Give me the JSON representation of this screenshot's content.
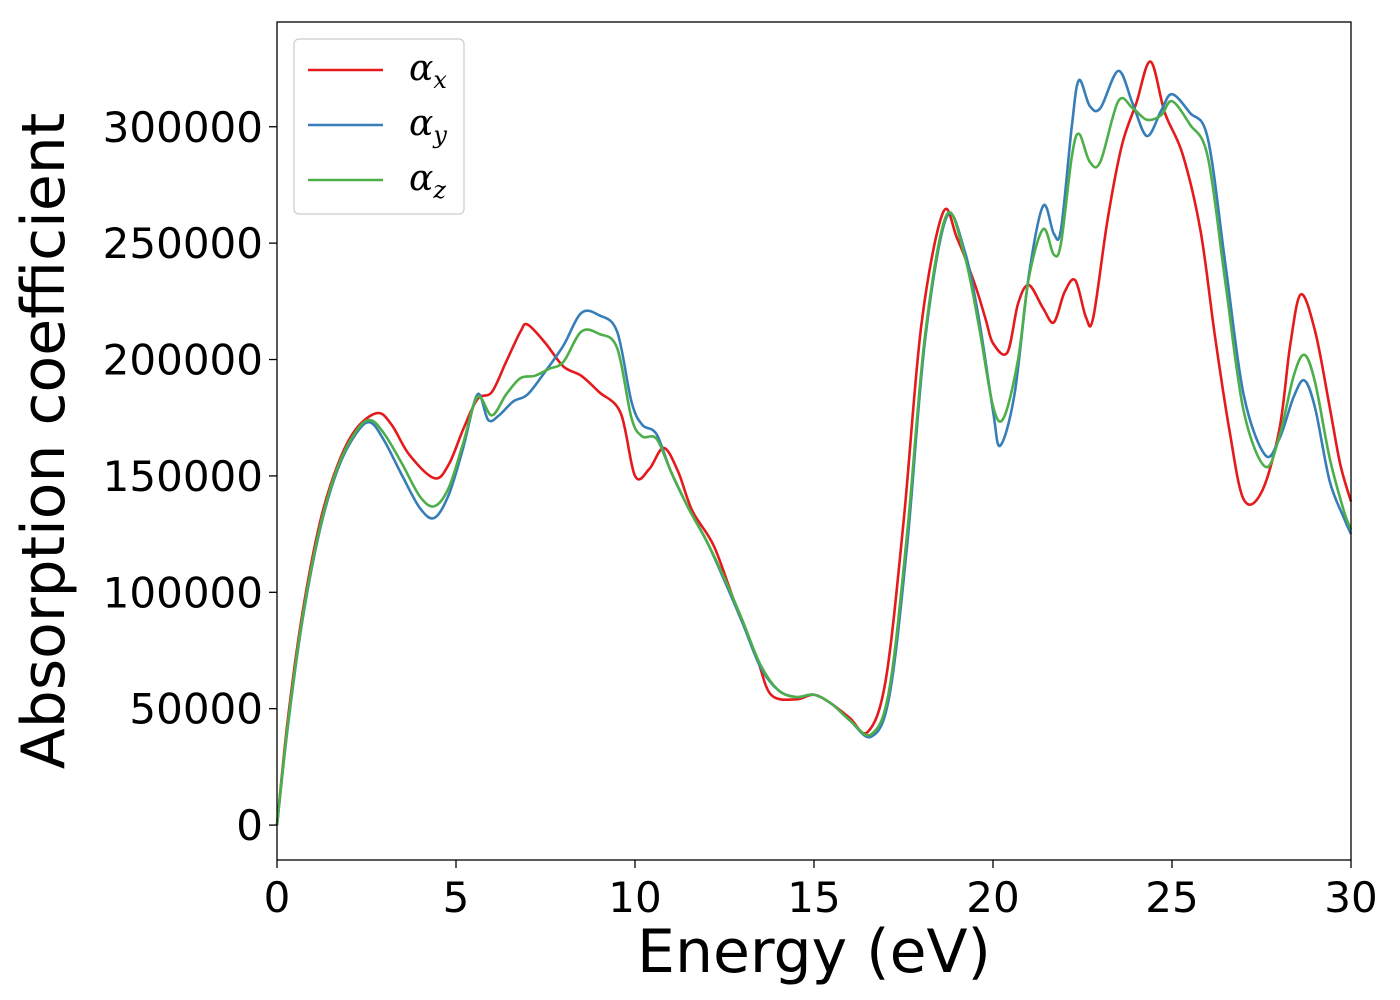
{
  "chart_data": {
    "type": "line",
    "title": "",
    "xlabel": "Energy (eV)",
    "ylabel": "Absorption coefficient",
    "xlim": [
      0,
      30
    ],
    "ylim": [
      -15000,
      345000
    ],
    "xticks": [
      0,
      5,
      10,
      15,
      20,
      25,
      30
    ],
    "xtick_labels": [
      "0",
      "5",
      "10",
      "15",
      "20",
      "25",
      "30"
    ],
    "yticks": [
      0,
      50000,
      100000,
      150000,
      200000,
      250000,
      300000
    ],
    "ytick_labels": [
      "0",
      "50000",
      "100000",
      "150000",
      "200000",
      "250000",
      "300000"
    ],
    "grid": false,
    "legend_position": "top-left",
    "series": [
      {
        "name": "α_x",
        "legend_symbol": "α",
        "legend_subscript": "x",
        "color": "#e41a1c",
        "points": [
          [
            0,
            0
          ],
          [
            0.3,
            45000
          ],
          [
            0.7,
            90000
          ],
          [
            1.2,
            130000
          ],
          [
            1.7,
            155000
          ],
          [
            2.2,
            170000
          ],
          [
            2.8,
            177000
          ],
          [
            3.2,
            172000
          ],
          [
            3.7,
            159000
          ],
          [
            4.4,
            149000
          ],
          [
            4.8,
            155000
          ],
          [
            5.2,
            170000
          ],
          [
            5.6,
            183000
          ],
          [
            6.0,
            186000
          ],
          [
            6.4,
            199000
          ],
          [
            6.8,
            212000
          ],
          [
            7.0,
            215000
          ],
          [
            7.5,
            207000
          ],
          [
            8.0,
            197000
          ],
          [
            8.5,
            193000
          ],
          [
            9.0,
            186000
          ],
          [
            9.6,
            177000
          ],
          [
            10.0,
            150000
          ],
          [
            10.4,
            153000
          ],
          [
            10.8,
            162000
          ],
          [
            11.2,
            152000
          ],
          [
            11.6,
            135000
          ],
          [
            12.2,
            120000
          ],
          [
            12.8,
            95000
          ],
          [
            13.4,
            72000
          ],
          [
            13.8,
            56000
          ],
          [
            14.5,
            54000
          ],
          [
            15.0,
            56000
          ],
          [
            15.5,
            52000
          ],
          [
            16.0,
            46000
          ],
          [
            16.5,
            40000
          ],
          [
            17.0,
            62000
          ],
          [
            17.5,
            130000
          ],
          [
            18.0,
            215000
          ],
          [
            18.6,
            263000
          ],
          [
            19.0,
            252000
          ],
          [
            19.5,
            232000
          ],
          [
            19.8,
            217000
          ],
          [
            20.0,
            207000
          ],
          [
            20.4,
            203000
          ],
          [
            20.7,
            224000
          ],
          [
            21.0,
            232000
          ],
          [
            21.4,
            222000
          ],
          [
            21.7,
            216000
          ],
          [
            22.0,
            229000
          ],
          [
            22.3,
            234000
          ],
          [
            22.6,
            218000
          ],
          [
            22.8,
            218000
          ],
          [
            23.2,
            260000
          ],
          [
            23.6,
            292000
          ],
          [
            24.0,
            310000
          ],
          [
            24.4,
            328000
          ],
          [
            24.8,
            306000
          ],
          [
            25.3,
            288000
          ],
          [
            25.8,
            255000
          ],
          [
            26.2,
            210000
          ],
          [
            26.6,
            170000
          ],
          [
            27.0,
            140000
          ],
          [
            27.5,
            143000
          ],
          [
            28.0,
            170000
          ],
          [
            28.3,
            206000
          ],
          [
            28.6,
            228000
          ],
          [
            29.0,
            212000
          ],
          [
            29.4,
            180000
          ],
          [
            29.7,
            155000
          ],
          [
            30.0,
            139000
          ]
        ]
      },
      {
        "name": "α_y",
        "legend_symbol": "α",
        "legend_subscript": "y",
        "color": "#377eb8",
        "points": [
          [
            0,
            0
          ],
          [
            0.3,
            42000
          ],
          [
            0.7,
            87000
          ],
          [
            1.2,
            127000
          ],
          [
            1.7,
            153000
          ],
          [
            2.2,
            168000
          ],
          [
            2.6,
            173000
          ],
          [
            3.0,
            165000
          ],
          [
            3.5,
            150000
          ],
          [
            4.0,
            136000
          ],
          [
            4.4,
            132000
          ],
          [
            4.8,
            142000
          ],
          [
            5.2,
            162000
          ],
          [
            5.6,
            185000
          ],
          [
            5.9,
            174000
          ],
          [
            6.2,
            176000
          ],
          [
            6.6,
            182000
          ],
          [
            7.0,
            185000
          ],
          [
            7.5,
            195000
          ],
          [
            8.0,
            206000
          ],
          [
            8.5,
            220000
          ],
          [
            9.0,
            219000
          ],
          [
            9.5,
            212000
          ],
          [
            9.9,
            182000
          ],
          [
            10.2,
            172000
          ],
          [
            10.6,
            168000
          ],
          [
            11.0,
            152000
          ],
          [
            11.5,
            136000
          ],
          [
            12.0,
            122000
          ],
          [
            12.5,
            105000
          ],
          [
            13.0,
            87000
          ],
          [
            13.5,
            68000
          ],
          [
            14.0,
            58000
          ],
          [
            14.5,
            55000
          ],
          [
            15.0,
            56000
          ],
          [
            15.5,
            52000
          ],
          [
            16.0,
            45000
          ],
          [
            16.6,
            38000
          ],
          [
            17.1,
            55000
          ],
          [
            17.6,
            120000
          ],
          [
            18.1,
            208000
          ],
          [
            18.7,
            261000
          ],
          [
            19.2,
            247000
          ],
          [
            19.6,
            218000
          ],
          [
            20.0,
            178000
          ],
          [
            20.2,
            163000
          ],
          [
            20.6,
            185000
          ],
          [
            21.0,
            236000
          ],
          [
            21.4,
            266000
          ],
          [
            21.7,
            254000
          ],
          [
            21.9,
            256000
          ],
          [
            22.2,
            300000
          ],
          [
            22.4,
            320000
          ],
          [
            22.7,
            309000
          ],
          [
            23.0,
            308000
          ],
          [
            23.5,
            324000
          ],
          [
            23.9,
            310000
          ],
          [
            24.3,
            296000
          ],
          [
            24.7,
            307000
          ],
          [
            25.0,
            314000
          ],
          [
            25.5,
            306000
          ],
          [
            26.0,
            295000
          ],
          [
            26.5,
            240000
          ],
          [
            27.0,
            185000
          ],
          [
            27.6,
            159000
          ],
          [
            28.0,
            166000
          ],
          [
            28.4,
            184000
          ],
          [
            28.7,
            191000
          ],
          [
            29.0,
            179000
          ],
          [
            29.4,
            148000
          ],
          [
            29.8,
            132000
          ],
          [
            30.0,
            125000
          ]
        ]
      },
      {
        "name": "α_z",
        "legend_symbol": "α",
        "legend_subscript": "z",
        "color": "#4daf4a",
        "points": [
          [
            0,
            0
          ],
          [
            0.3,
            43000
          ],
          [
            0.7,
            88000
          ],
          [
            1.2,
            128000
          ],
          [
            1.7,
            154000
          ],
          [
            2.2,
            169000
          ],
          [
            2.6,
            174000
          ],
          [
            3.0,
            168000
          ],
          [
            3.5,
            155000
          ],
          [
            4.0,
            141000
          ],
          [
            4.4,
            137000
          ],
          [
            4.8,
            145000
          ],
          [
            5.2,
            164000
          ],
          [
            5.6,
            184000
          ],
          [
            6.0,
            176000
          ],
          [
            6.4,
            185000
          ],
          [
            6.8,
            192000
          ],
          [
            7.2,
            193000
          ],
          [
            7.6,
            196000
          ],
          [
            8.0,
            199000
          ],
          [
            8.5,
            212000
          ],
          [
            9.0,
            211000
          ],
          [
            9.5,
            205000
          ],
          [
            9.9,
            175000
          ],
          [
            10.2,
            167000
          ],
          [
            10.6,
            166000
          ],
          [
            11.0,
            152000
          ],
          [
            11.5,
            136000
          ],
          [
            12.0,
            122000
          ],
          [
            12.5,
            106000
          ],
          [
            13.0,
            88000
          ],
          [
            13.5,
            69000
          ],
          [
            14.0,
            58000
          ],
          [
            14.5,
            55000
          ],
          [
            15.0,
            56000
          ],
          [
            15.5,
            52000
          ],
          [
            16.0,
            45000
          ],
          [
            16.6,
            39000
          ],
          [
            17.1,
            58000
          ],
          [
            17.6,
            125000
          ],
          [
            18.1,
            210000
          ],
          [
            18.7,
            262000
          ],
          [
            19.2,
            245000
          ],
          [
            19.6,
            215000
          ],
          [
            20.0,
            180000
          ],
          [
            20.3,
            175000
          ],
          [
            20.7,
            200000
          ],
          [
            21.0,
            235000
          ],
          [
            21.4,
            256000
          ],
          [
            21.7,
            245000
          ],
          [
            21.9,
            250000
          ],
          [
            22.2,
            287000
          ],
          [
            22.4,
            297000
          ],
          [
            22.7,
            285000
          ],
          [
            23.0,
            285000
          ],
          [
            23.5,
            311000
          ],
          [
            23.9,
            308000
          ],
          [
            24.3,
            303000
          ],
          [
            24.7,
            305000
          ],
          [
            25.0,
            311000
          ],
          [
            25.5,
            301000
          ],
          [
            26.0,
            287000
          ],
          [
            26.5,
            232000
          ],
          [
            27.0,
            178000
          ],
          [
            27.6,
            154000
          ],
          [
            28.0,
            167000
          ],
          [
            28.4,
            193000
          ],
          [
            28.7,
            202000
          ],
          [
            29.0,
            190000
          ],
          [
            29.4,
            158000
          ],
          [
            29.8,
            135000
          ],
          [
            30.0,
            127000
          ]
        ]
      }
    ]
  }
}
